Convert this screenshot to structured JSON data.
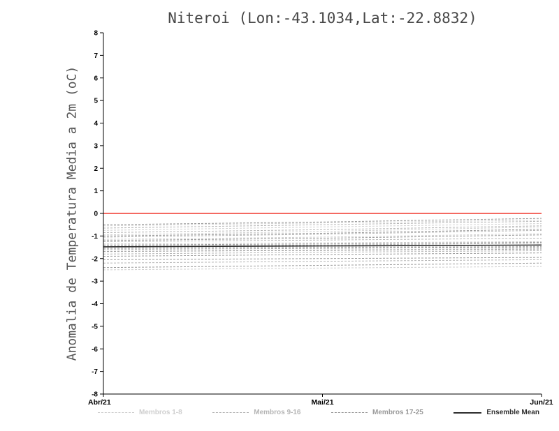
{
  "chart_data": {
    "type": "line",
    "title": "Niteroi (Lon:-43.1034,Lat:-22.8832)",
    "ylabel": "Anomalia de Temperatura Media a 2m (oC)",
    "xlabel": "",
    "x_ticks": [
      "Abr/21",
      "Mai/21",
      "Jun/21"
    ],
    "y_ticks": [
      8,
      7,
      6,
      5,
      4,
      3,
      2,
      1,
      0,
      -1,
      -2,
      -3,
      -4,
      -5,
      -6,
      -7,
      -8
    ],
    "ylim": [
      -8,
      8
    ],
    "grid": false,
    "legend_position": "bottom",
    "axis_color": "#000000",
    "zero_line": {
      "y": 0,
      "color": "#f0392e"
    },
    "groups": [
      {
        "name": "Membros 1-8",
        "color": "#cfcfcf",
        "line_style": "dashed",
        "members": [
          [
            -0.55,
            -0.42,
            -0.3
          ],
          [
            -0.75,
            -0.6,
            -0.45
          ],
          [
            -0.95,
            -0.8,
            -0.6
          ],
          [
            -1.15,
            -1.05,
            -0.9
          ],
          [
            -1.35,
            -1.3,
            -1.25
          ],
          [
            -1.5,
            -1.48,
            -1.45
          ],
          [
            -1.7,
            -1.62,
            -1.55
          ],
          [
            -2.5,
            -2.42,
            -2.35
          ]
        ]
      },
      {
        "name": "Membros 9-16",
        "color": "#b5b5b5",
        "line_style": "dashed",
        "members": [
          [
            -0.65,
            -0.5,
            -0.35
          ],
          [
            -0.85,
            -0.72,
            -0.55
          ],
          [
            -1.05,
            -0.92,
            -0.75
          ],
          [
            -1.25,
            -1.18,
            -1.1
          ],
          [
            -1.45,
            -1.4,
            -1.32
          ],
          [
            -1.6,
            -1.55,
            -1.5
          ],
          [
            -1.8,
            -1.72,
            -1.65
          ],
          [
            -2.2,
            -2.12,
            -2.05
          ]
        ]
      },
      {
        "name": "Membros 17-25",
        "color": "#9a9a9a",
        "line_style": "dashed",
        "members": [
          [
            -0.5,
            -0.38,
            -0.22
          ],
          [
            -1.0,
            -0.88,
            -0.7
          ],
          [
            -1.2,
            -1.1,
            -0.95
          ],
          [
            -1.4,
            -1.35,
            -1.28
          ],
          [
            -1.55,
            -1.52,
            -1.48
          ],
          [
            -1.68,
            -1.64,
            -1.58
          ],
          [
            -1.9,
            -1.82,
            -1.75
          ],
          [
            -2.05,
            -2.0,
            -1.95
          ],
          [
            -2.4,
            -2.3,
            -2.2
          ]
        ]
      }
    ],
    "ensemble_mean": {
      "name": "Ensemble Mean",
      "color": "#2e2e2e",
      "line_style": "solid",
      "values": [
        -1.48,
        -1.44,
        -1.4
      ]
    }
  }
}
